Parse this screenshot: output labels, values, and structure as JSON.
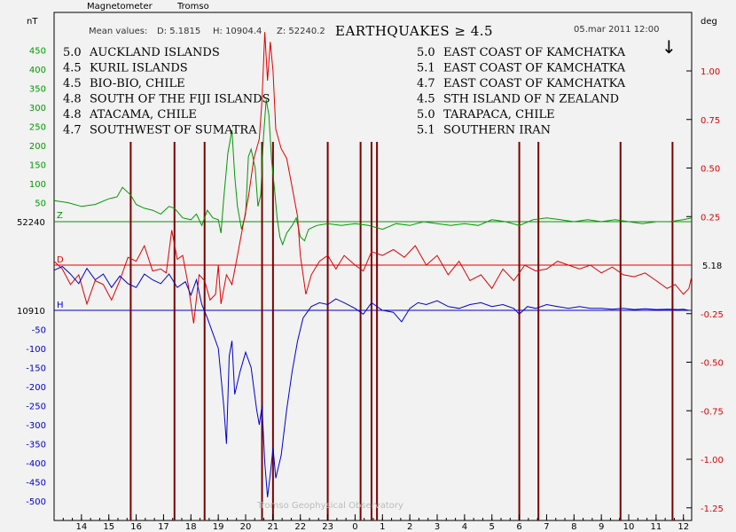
{
  "header": {
    "instrument": "Magnetometer",
    "station": "Tromso",
    "mean_values_label": "Mean values:",
    "mean_D": "D: 5.1815",
    "mean_H": "H: 10904.4",
    "mean_Z": "Z: 52240.2",
    "title": "EARTHQUAKES ≥ 4.5",
    "datetime": "05.mar 2011 12:00",
    "arrow": "↓"
  },
  "axes": {
    "left_unit": "nT",
    "right_unit": "deg",
    "z_baseline_label": "52240",
    "h_baseline_label": "10910",
    "d_baseline_label": "5.18",
    "left_ticks_green": [
      450,
      400,
      350,
      300,
      250,
      200,
      150,
      100,
      50
    ],
    "left_ticks_blue": [
      -50,
      -100,
      -150,
      -200,
      -250,
      -300,
      -350,
      -400,
      -450,
      -500
    ],
    "right_ticks": [
      "1.00",
      "0.75",
      "0.50",
      "0.25",
      "-0.25",
      "-0.50",
      "-0.75",
      "-1.00",
      "-1.25"
    ],
    "x_ticks": [
      "14",
      "15",
      "16",
      "17",
      "18",
      "19",
      "20",
      "21",
      "22",
      "23",
      "0",
      "1",
      "2",
      "3",
      "4",
      "5",
      "6",
      "7",
      "8",
      "9",
      "10",
      "11",
      "12"
    ]
  },
  "earthquakes_left": [
    {
      "mag": "5.0",
      "place": "AUCKLAND ISLANDS"
    },
    {
      "mag": "4.5",
      "place": "KURIL ISLANDS"
    },
    {
      "mag": "4.5",
      "place": "BIO-BIO, CHILE"
    },
    {
      "mag": "4.8",
      "place": "SOUTH OF THE FIJI ISLANDS"
    },
    {
      "mag": "4.8",
      "place": "ATACAMA, CHILE"
    },
    {
      "mag": "4.7",
      "place": "SOUTHWEST OF SUMATRA"
    }
  ],
  "earthquakes_right": [
    {
      "mag": "5.0",
      "place": "EAST COAST OF KAMCHATKA"
    },
    {
      "mag": "5.1",
      "place": "EAST COAST OF KAMCHATKA"
    },
    {
      "mag": "4.7",
      "place": "EAST COAST OF KAMCHATKA"
    },
    {
      "mag": "4.5",
      "place": "STH ISLAND OF N ZEALAND"
    },
    {
      "mag": "5.0",
      "place": "TARAPACA, CHILE"
    },
    {
      "mag": "5.1",
      "place": "SOUTHERN IRAN"
    }
  ],
  "footer": "Tromso Geophysical Observatory",
  "colors": {
    "Z": "#009900",
    "D": "#dd0000",
    "H": "#0000cc",
    "event_line": "#7a0000",
    "background": "#f2f2f2"
  },
  "chart_data": {
    "type": "line",
    "xlabel": "",
    "ylabel_left": "nT",
    "ylabel_right": "deg",
    "x_ticks": [
      "14",
      "15",
      "16",
      "17",
      "18",
      "19",
      "20",
      "21",
      "22",
      "23",
      "0",
      "1",
      "2",
      "3",
      "4",
      "5",
      "6",
      "7",
      "8",
      "9",
      "10",
      "11",
      "12"
    ],
    "event_hours": [
      15.8,
      17.4,
      18.5,
      20.6,
      21.0,
      23.0,
      24.2,
      24.6,
      24.8,
      30.0,
      30.7,
      33.7,
      35.6
    ],
    "series": [
      {
        "name": "Z",
        "unit": "nT",
        "baseline": 52240,
        "points": [
          [
            13.0,
            55
          ],
          [
            13.5,
            50
          ],
          [
            14.0,
            40
          ],
          [
            14.5,
            45
          ],
          [
            15.0,
            60
          ],
          [
            15.3,
            65
          ],
          [
            15.5,
            90
          ],
          [
            15.8,
            70
          ],
          [
            16.0,
            45
          ],
          [
            16.3,
            35
          ],
          [
            16.6,
            30
          ],
          [
            16.9,
            20
          ],
          [
            17.2,
            40
          ],
          [
            17.4,
            35
          ],
          [
            17.7,
            10
          ],
          [
            18.0,
            5
          ],
          [
            18.2,
            20
          ],
          [
            18.4,
            -10
          ],
          [
            18.6,
            30
          ],
          [
            18.8,
            10
          ],
          [
            19.0,
            5
          ],
          [
            19.1,
            -30
          ],
          [
            19.2,
            60
          ],
          [
            19.35,
            180
          ],
          [
            19.5,
            240
          ],
          [
            19.6,
            120
          ],
          [
            19.7,
            40
          ],
          [
            19.85,
            -20
          ],
          [
            20.0,
            20
          ],
          [
            20.1,
            170
          ],
          [
            20.2,
            190
          ],
          [
            20.35,
            140
          ],
          [
            20.45,
            40
          ],
          [
            20.55,
            70
          ],
          [
            20.65,
            220
          ],
          [
            20.75,
            320
          ],
          [
            20.85,
            280
          ],
          [
            20.95,
            160
          ],
          [
            21.05,
            90
          ],
          [
            21.15,
            10
          ],
          [
            21.25,
            -40
          ],
          [
            21.35,
            -60
          ],
          [
            21.5,
            -30
          ],
          [
            21.7,
            -10
          ],
          [
            21.85,
            10
          ],
          [
            22.0,
            -40
          ],
          [
            22.15,
            -50
          ],
          [
            22.3,
            -20
          ],
          [
            22.6,
            -10
          ],
          [
            23.0,
            -5
          ],
          [
            23.5,
            -10
          ],
          [
            24.0,
            -5
          ],
          [
            24.5,
            -10
          ],
          [
            25.0,
            -20
          ],
          [
            25.5,
            -5
          ],
          [
            26.0,
            -10
          ],
          [
            26.5,
            0
          ],
          [
            27.0,
            -5
          ],
          [
            27.5,
            -10
          ],
          [
            28.0,
            -5
          ],
          [
            28.5,
            -10
          ],
          [
            29.0,
            5
          ],
          [
            29.5,
            0
          ],
          [
            30.0,
            -10
          ],
          [
            30.5,
            5
          ],
          [
            31.0,
            10
          ],
          [
            31.5,
            5
          ],
          [
            32.0,
            0
          ],
          [
            32.5,
            5
          ],
          [
            33.0,
            0
          ],
          [
            33.5,
            5
          ],
          [
            34.0,
            0
          ],
          [
            34.5,
            -5
          ],
          [
            35.0,
            0
          ],
          [
            35.5,
            0
          ],
          [
            36.0,
            5
          ],
          [
            36.3,
            10
          ]
        ]
      },
      {
        "name": "D",
        "unit": "deg",
        "baseline": 5.18,
        "points": [
          [
            13.0,
            0.02
          ],
          [
            13.3,
            -0.02
          ],
          [
            13.6,
            -0.1
          ],
          [
            13.9,
            -0.05
          ],
          [
            14.2,
            -0.2
          ],
          [
            14.5,
            -0.08
          ],
          [
            14.8,
            -0.1
          ],
          [
            15.1,
            -0.18
          ],
          [
            15.4,
            -0.08
          ],
          [
            15.7,
            0.04
          ],
          [
            16.0,
            0.02
          ],
          [
            16.3,
            0.1
          ],
          [
            16.6,
            -0.03
          ],
          [
            16.9,
            -0.02
          ],
          [
            17.1,
            -0.04
          ],
          [
            17.3,
            0.18
          ],
          [
            17.5,
            0.03
          ],
          [
            17.7,
            0.05
          ],
          [
            17.9,
            -0.1
          ],
          [
            18.1,
            -0.3
          ],
          [
            18.3,
            -0.05
          ],
          [
            18.5,
            -0.08
          ],
          [
            18.7,
            -0.18
          ],
          [
            18.9,
            -0.15
          ],
          [
            19.0,
            0.0
          ],
          [
            19.1,
            -0.2
          ],
          [
            19.3,
            -0.05
          ],
          [
            19.5,
            -0.1
          ],
          [
            19.7,
            0.05
          ],
          [
            19.9,
            0.2
          ],
          [
            20.1,
            0.35
          ],
          [
            20.3,
            0.55
          ],
          [
            20.5,
            0.65
          ],
          [
            20.6,
            0.85
          ],
          [
            20.7,
            1.2
          ],
          [
            20.8,
            0.95
          ],
          [
            20.9,
            1.15
          ],
          [
            21.0,
            1.0
          ],
          [
            21.1,
            0.7
          ],
          [
            21.3,
            0.6
          ],
          [
            21.5,
            0.55
          ],
          [
            21.7,
            0.4
          ],
          [
            21.9,
            0.25
          ],
          [
            22.0,
            0.05
          ],
          [
            22.2,
            -0.15
          ],
          [
            22.4,
            -0.05
          ],
          [
            22.7,
            0.02
          ],
          [
            23.0,
            0.05
          ],
          [
            23.3,
            -0.02
          ],
          [
            23.6,
            0.05
          ],
          [
            24.0,
            0.0
          ],
          [
            24.3,
            -0.03
          ],
          [
            24.6,
            0.07
          ],
          [
            25.0,
            0.05
          ],
          [
            25.4,
            0.08
          ],
          [
            25.8,
            0.04
          ],
          [
            26.2,
            0.1
          ],
          [
            26.6,
            0.0
          ],
          [
            27.0,
            0.05
          ],
          [
            27.4,
            -0.05
          ],
          [
            27.8,
            0.02
          ],
          [
            28.2,
            -0.08
          ],
          [
            28.6,
            -0.05
          ],
          [
            29.0,
            -0.12
          ],
          [
            29.4,
            -0.02
          ],
          [
            29.8,
            -0.08
          ],
          [
            30.2,
            0.0
          ],
          [
            30.6,
            -0.03
          ],
          [
            31.0,
            -0.02
          ],
          [
            31.4,
            0.02
          ],
          [
            31.8,
            0.0
          ],
          [
            32.2,
            -0.02
          ],
          [
            32.6,
            0.0
          ],
          [
            33.0,
            -0.04
          ],
          [
            33.4,
            -0.01
          ],
          [
            33.8,
            -0.05
          ],
          [
            34.2,
            -0.06
          ],
          [
            34.6,
            -0.04
          ],
          [
            35.0,
            -0.08
          ],
          [
            35.4,
            -0.12
          ],
          [
            35.7,
            -0.1
          ],
          [
            36.0,
            -0.15
          ],
          [
            36.2,
            -0.12
          ],
          [
            36.3,
            -0.06
          ]
        ]
      },
      {
        "name": "H",
        "unit": "nT",
        "baseline": 10910,
        "points": [
          [
            13.0,
            105
          ],
          [
            13.3,
            115
          ],
          [
            13.6,
            95
          ],
          [
            13.9,
            70
          ],
          [
            14.2,
            110
          ],
          [
            14.5,
            80
          ],
          [
            14.8,
            95
          ],
          [
            15.1,
            60
          ],
          [
            15.4,
            90
          ],
          [
            15.7,
            70
          ],
          [
            16.0,
            60
          ],
          [
            16.3,
            95
          ],
          [
            16.6,
            80
          ],
          [
            16.9,
            70
          ],
          [
            17.2,
            95
          ],
          [
            17.5,
            60
          ],
          [
            17.8,
            75
          ],
          [
            18.0,
            40
          ],
          [
            18.2,
            80
          ],
          [
            18.4,
            15
          ],
          [
            18.6,
            -20
          ],
          [
            18.8,
            -60
          ],
          [
            19.0,
            -100
          ],
          [
            19.2,
            -250
          ],
          [
            19.3,
            -350
          ],
          [
            19.4,
            -120
          ],
          [
            19.5,
            -80
          ],
          [
            19.6,
            -220
          ],
          [
            19.8,
            -160
          ],
          [
            20.0,
            -110
          ],
          [
            20.2,
            -150
          ],
          [
            20.4,
            -260
          ],
          [
            20.5,
            -300
          ],
          [
            20.6,
            -250
          ],
          [
            20.7,
            -400
          ],
          [
            20.8,
            -490
          ],
          [
            20.9,
            -430
          ],
          [
            21.0,
            -360
          ],
          [
            21.1,
            -440
          ],
          [
            21.3,
            -380
          ],
          [
            21.5,
            -260
          ],
          [
            21.7,
            -160
          ],
          [
            21.9,
            -80
          ],
          [
            22.1,
            -20
          ],
          [
            22.4,
            10
          ],
          [
            22.7,
            20
          ],
          [
            23.0,
            15
          ],
          [
            23.3,
            30
          ],
          [
            23.6,
            20
          ],
          [
            24.0,
            5
          ],
          [
            24.3,
            -10
          ],
          [
            24.6,
            20
          ],
          [
            25.0,
            0
          ],
          [
            25.4,
            -5
          ],
          [
            25.7,
            -30
          ],
          [
            26.0,
            5
          ],
          [
            26.3,
            20
          ],
          [
            26.6,
            15
          ],
          [
            27.0,
            25
          ],
          [
            27.4,
            10
          ],
          [
            27.8,
            5
          ],
          [
            28.2,
            15
          ],
          [
            28.6,
            20
          ],
          [
            29.0,
            10
          ],
          [
            29.4,
            15
          ],
          [
            29.8,
            5
          ],
          [
            30.0,
            -10
          ],
          [
            30.3,
            10
          ],
          [
            30.6,
            5
          ],
          [
            31.0,
            15
          ],
          [
            31.4,
            10
          ],
          [
            31.8,
            5
          ],
          [
            32.2,
            10
          ],
          [
            32.6,
            5
          ],
          [
            33.0,
            5
          ],
          [
            33.4,
            3
          ],
          [
            33.8,
            5
          ],
          [
            34.2,
            2
          ],
          [
            34.6,
            4
          ],
          [
            35.0,
            2
          ],
          [
            35.4,
            3
          ],
          [
            35.8,
            2
          ],
          [
            36.0,
            3
          ],
          [
            36.2,
            0
          ]
        ]
      }
    ]
  }
}
